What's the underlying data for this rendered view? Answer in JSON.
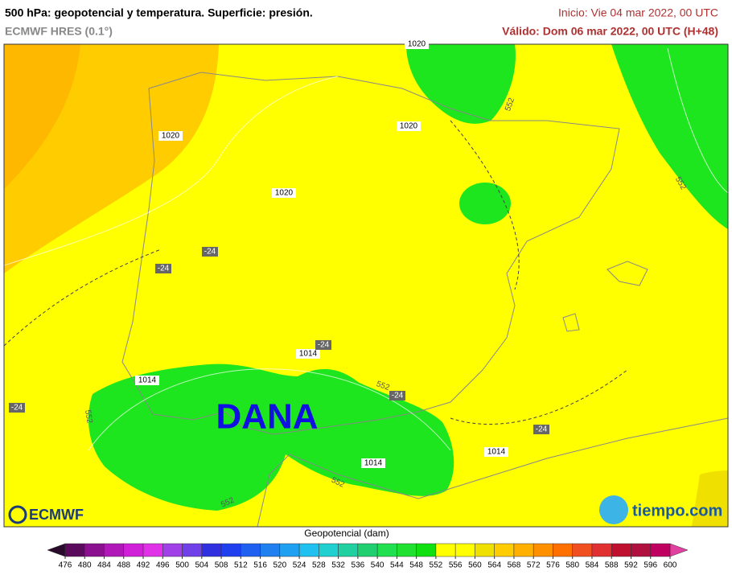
{
  "header": {
    "title": "500 hPa: geopotencial y temperatura. Superficie: presión.",
    "model": "ECMWF HRES (0.1°)",
    "init": "Inicio: Vie 04 mar 2022, 00 UTC",
    "valid": "Válido: Dom 06 mar 2022, 00 UTC (H+48)"
  },
  "map": {
    "annotation": "DANA",
    "pressure_labels": [
      "1020",
      "1020",
      "1020",
      "1020",
      "1014",
      "1014",
      "1014",
      "1014"
    ],
    "temperature_labels": [
      "-24",
      "-24",
      "-24",
      "-24",
      "-24",
      "-24"
    ],
    "geopotential_labels": [
      "552",
      "552",
      "552",
      "552",
      "552",
      "552"
    ]
  },
  "logos": {
    "left": "ECMWF",
    "right": "tiempo.com"
  },
  "colorbar": {
    "title": "Geopotencial (dam)",
    "ticks": [
      476,
      480,
      484,
      488,
      492,
      496,
      500,
      504,
      508,
      512,
      516,
      520,
      524,
      528,
      532,
      536,
      540,
      544,
      548,
      552,
      556,
      560,
      564,
      568,
      572,
      576,
      580,
      584,
      588,
      592,
      596,
      600
    ],
    "colors": [
      "#5a0a5a",
      "#8a1090",
      "#b018b8",
      "#d020d8",
      "#e030e8",
      "#a040e8",
      "#7040e8",
      "#3030e0",
      "#2040f0",
      "#2060f0",
      "#2080f0",
      "#20a0f0",
      "#20c0f0",
      "#20d0d0",
      "#20d0a0",
      "#20d070",
      "#20e050",
      "#20e030",
      "#10e010",
      "#ffff00",
      "#ffff00",
      "#f0e000",
      "#ffcc00",
      "#ffb000",
      "#ff9000",
      "#ff7000",
      "#f05020",
      "#e03030",
      "#c01030",
      "#b01040",
      "#c00060"
    ],
    "under_color": "#2a0a2a",
    "over_color": "#e040a0"
  }
}
